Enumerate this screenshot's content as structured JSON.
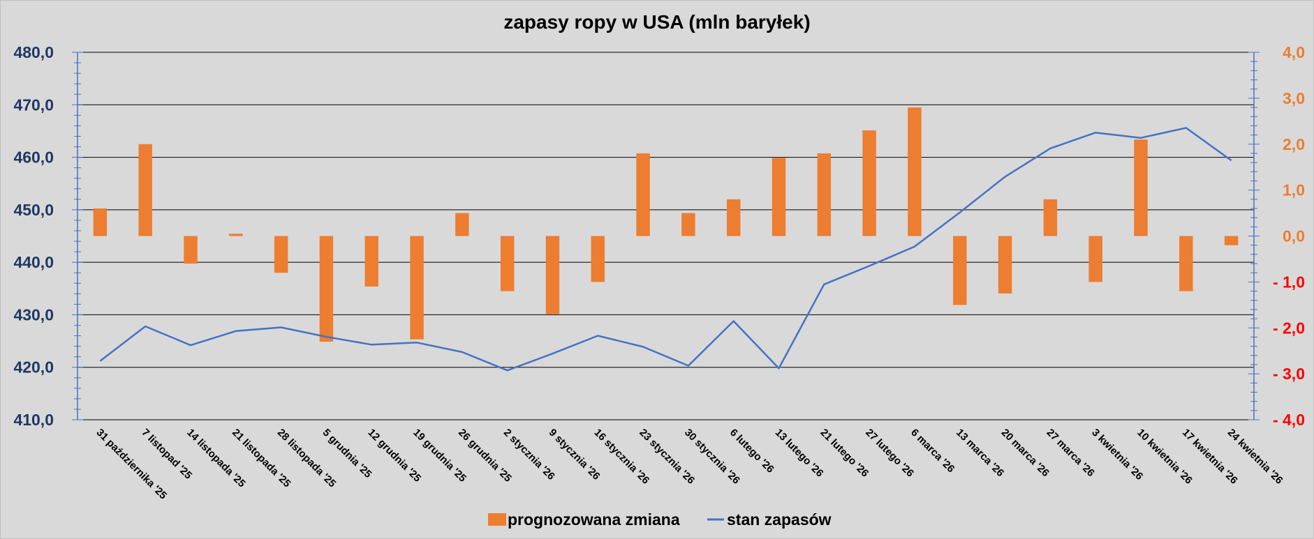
{
  "chart_data": {
    "type": "bar+line",
    "title": "zapasy ropy w USA (mln baryłek)",
    "categories": [
      "31 października '25",
      "7 listopad '25",
      "14 listopada '25",
      "21 listopada '25",
      "28 listopada '25",
      "5 grudnia '25",
      "12 grudnia '25",
      "19 grudnia '25",
      "26 grudnia '25",
      "2 stycznia '26",
      "9 stycznia '26",
      "16 stycznia '26",
      "23 stycznia '26",
      "30 stycznia '26",
      "6 lutego '26",
      "13 lutego '26",
      "21 lutego '26",
      "27 lutego '26",
      "6 marca '26",
      "13 marca '26",
      "20 marca '26",
      "27 marca '26",
      "3 kwietnia '26",
      "10 kwietnia '26",
      "17 kwietnia '26",
      "24 kwietnia '26"
    ],
    "series": [
      {
        "name": "prognozowana zmiana",
        "type": "bar",
        "axis": "right",
        "color": "#ed7d31",
        "values": [
          0.6,
          2.0,
          -0.6,
          0.05,
          -0.8,
          -2.3,
          -1.1,
          -2.25,
          0.5,
          -1.2,
          -1.7,
          -1.0,
          1.8,
          0.5,
          0.8,
          1.7,
          1.8,
          2.3,
          2.8,
          -1.5,
          -1.25,
          0.8,
          -1.0,
          2.1,
          -1.2,
          -0.2
        ]
      },
      {
        "name": "stan zapasów",
        "type": "line",
        "axis": "left",
        "color": "#4472c4",
        "values": [
          421.2,
          427.8,
          424.2,
          426.9,
          427.6,
          425.8,
          424.3,
          424.7,
          422.9,
          419.4,
          422.6,
          426.0,
          423.9,
          420.3,
          428.8,
          419.8,
          435.8,
          439.3,
          443.0,
          449.5,
          456.3,
          461.7,
          464.7,
          463.7,
          465.6,
          459.4
        ]
      }
    ],
    "ylim_left": [
      410,
      480
    ],
    "ylim_right": [
      -4,
      4
    ],
    "yticks_left": [
      "480,0",
      "470,0",
      "460,0",
      "450,0",
      "440,0",
      "430,0",
      "420,0",
      "410,0"
    ],
    "yticks_right": [
      {
        "label": "4,0",
        "color": "#ed7d31"
      },
      {
        "label": "3,0",
        "color": "#ed7d31"
      },
      {
        "label": "2,0",
        "color": "#ed7d31"
      },
      {
        "label": "1,0",
        "color": "#ed7d31"
      },
      {
        "label": "0,0",
        "color": "#ed7d31"
      },
      {
        "label": "- 1,0",
        "color": "#ff0000"
      },
      {
        "label": "- 2,0",
        "color": "#ff0000"
      },
      {
        "label": "- 3,0",
        "color": "#ff0000"
      },
      {
        "label": "- 4,0",
        "color": "#ff0000"
      }
    ],
    "grid": true,
    "legend_position": "bottom-center",
    "legend": [
      {
        "name": "prognozowana zmiana",
        "kind": "bar",
        "color": "#ed7d31"
      },
      {
        "name": "stan zapasów",
        "kind": "line",
        "color": "#4472c4"
      }
    ]
  }
}
